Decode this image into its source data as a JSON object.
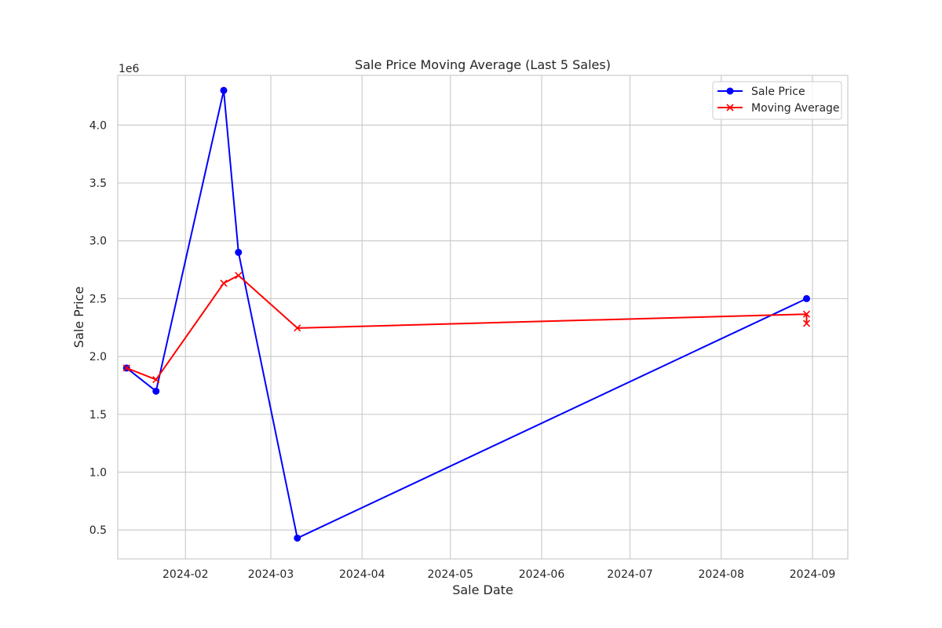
{
  "chart_data": {
    "type": "line",
    "title": "Sale Price Moving Average (Last 5 Sales)",
    "xlabel": "Sale Date",
    "ylabel": "Sale Price",
    "y_offset_label": "1e6",
    "y_scale": 1000000,
    "xlim": [
      "2024-01-09",
      "2024-09-13"
    ],
    "ylim": [
      250000,
      4430000
    ],
    "x_ticks": [
      "2024-02-01",
      "2024-03-01",
      "2024-04-01",
      "2024-05-01",
      "2024-06-01",
      "2024-07-01",
      "2024-08-01",
      "2024-09-01"
    ],
    "x_tick_labels": [
      "2024-02",
      "2024-03",
      "2024-04",
      "2024-05",
      "2024-06",
      "2024-07",
      "2024-08",
      "2024-09"
    ],
    "y_ticks": [
      500000,
      1000000,
      1500000,
      2000000,
      2500000,
      3000000,
      3500000,
      4000000
    ],
    "y_tick_labels": [
      "0.5",
      "1.0",
      "1.5",
      "2.0",
      "2.5",
      "3.0",
      "3.5",
      "4.0"
    ],
    "grid": true,
    "legend_position": "top-right",
    "series": [
      {
        "name": "Sale Price",
        "color": "#0000ff",
        "marker": "circle",
        "points": [
          {
            "x": "2024-01-12",
            "y": 1900000
          },
          {
            "x": "2024-01-22",
            "y": 1700000
          },
          {
            "x": "2024-02-14",
            "y": 4300000
          },
          {
            "x": "2024-02-19",
            "y": 2900000
          },
          {
            "x": "2024-03-10",
            "y": 430000
          },
          {
            "x": "2024-08-30",
            "y": 2500000
          }
        ]
      },
      {
        "name": "Moving Average",
        "color": "#ff0000",
        "marker": "x",
        "points": [
          {
            "x": "2024-01-12",
            "y": 1900000
          },
          {
            "x": "2024-01-22",
            "y": 1800000
          },
          {
            "x": "2024-02-14",
            "y": 2633333
          },
          {
            "x": "2024-02-19",
            "y": 2700000
          },
          {
            "x": "2024-03-10",
            "y": 2246000
          },
          {
            "x": "2024-08-30",
            "y": 2366000
          },
          {
            "x": "2024-08-30",
            "y": 2286000
          }
        ]
      }
    ]
  }
}
